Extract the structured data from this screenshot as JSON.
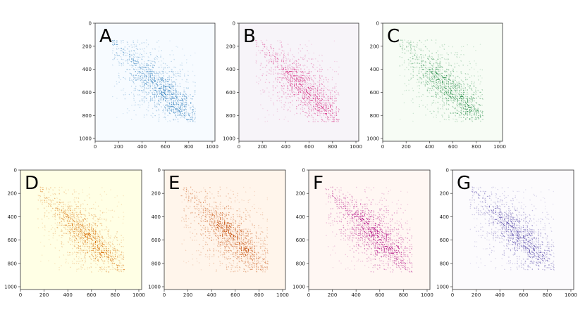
{
  "chart_data": [
    {
      "type": "heatmap",
      "label": "A",
      "colormap": "Blues",
      "bg": "#f7fbff",
      "color": "#2b7bba",
      "xlim": [
        0,
        1024
      ],
      "ylim": [
        0,
        1024
      ],
      "xticks": [
        0,
        200,
        400,
        600,
        800,
        1000
      ],
      "yticks": [
        0,
        200,
        400,
        600,
        800,
        1000
      ],
      "data_extent": [
        150,
        860
      ],
      "hotspots": [
        [
          450,
          450
        ],
        [
          580,
          580
        ],
        [
          720,
          720
        ]
      ]
    },
    {
      "type": "heatmap",
      "label": "B",
      "colormap": "PuRd",
      "bg": "#f7f4f9",
      "color": "#d6277f",
      "xlim": [
        0,
        1024
      ],
      "ylim": [
        0,
        1024
      ],
      "xticks": [
        0,
        200,
        400,
        600,
        800,
        1000
      ],
      "yticks": [
        0,
        200,
        400,
        600,
        800,
        1000
      ],
      "data_extent": [
        150,
        860
      ],
      "hotspots": [
        [
          450,
          450
        ],
        [
          580,
          580
        ],
        [
          720,
          720
        ]
      ]
    },
    {
      "type": "heatmap",
      "label": "C",
      "colormap": "Greens",
      "bg": "#f7fcf5",
      "color": "#238b45",
      "xlim": [
        0,
        1024
      ],
      "ylim": [
        0,
        1024
      ],
      "xticks": [
        0,
        200,
        400,
        600,
        800,
        1000
      ],
      "yticks": [
        0,
        200,
        400,
        600,
        800,
        1000
      ],
      "data_extent": [
        150,
        860
      ],
      "hotspots": [
        [
          450,
          450
        ],
        [
          580,
          580
        ],
        [
          720,
          720
        ]
      ]
    },
    {
      "type": "heatmap",
      "label": "D",
      "colormap": "YlOrBr",
      "bg": "#ffffe5",
      "color": "#d9740f",
      "xlim": [
        0,
        1024
      ],
      "ylim": [
        0,
        1024
      ],
      "xticks": [
        0,
        200,
        400,
        600,
        800,
        1000
      ],
      "yticks": [
        0,
        200,
        400,
        600,
        800,
        1000
      ],
      "data_extent": [
        150,
        880
      ],
      "hotspots": [
        [
          450,
          450
        ],
        [
          560,
          560
        ],
        [
          700,
          700
        ]
      ]
    },
    {
      "type": "heatmap",
      "label": "E",
      "colormap": "Oranges",
      "bg": "#fff5eb",
      "color": "#c44a05",
      "xlim": [
        0,
        1024
      ],
      "ylim": [
        0,
        1024
      ],
      "xticks": [
        0,
        200,
        400,
        600,
        800,
        1000
      ],
      "yticks": [
        0,
        200,
        400,
        600,
        800,
        1000
      ],
      "data_extent": [
        150,
        880
      ],
      "hotspots": [
        [
          450,
          450
        ],
        [
          560,
          560
        ],
        [
          700,
          700
        ]
      ]
    },
    {
      "type": "heatmap",
      "label": "F",
      "colormap": "RdPu",
      "bg": "#fff7f3",
      "color": "#ae017e",
      "xlim": [
        0,
        1024
      ],
      "ylim": [
        0,
        1024
      ],
      "xticks": [
        0,
        200,
        400,
        600,
        800,
        1000
      ],
      "yticks": [
        0,
        200,
        400,
        600,
        800,
        1000
      ],
      "data_extent": [
        150,
        880
      ],
      "hotspots": [
        [
          450,
          450
        ],
        [
          560,
          560
        ],
        [
          700,
          700
        ]
      ]
    },
    {
      "type": "heatmap",
      "label": "G",
      "colormap": "Purples",
      "bg": "#fcfbfd",
      "color": "#5a4cab",
      "xlim": [
        0,
        1024
      ],
      "ylim": [
        0,
        1024
      ],
      "xticks": [
        0,
        200,
        400,
        600,
        800,
        1000
      ],
      "yticks": [
        0,
        200,
        400,
        600,
        800,
        1000
      ],
      "data_extent": [
        150,
        860
      ],
      "hotspots": [
        [
          450,
          450
        ],
        [
          560,
          560
        ],
        [
          700,
          700
        ]
      ]
    }
  ]
}
